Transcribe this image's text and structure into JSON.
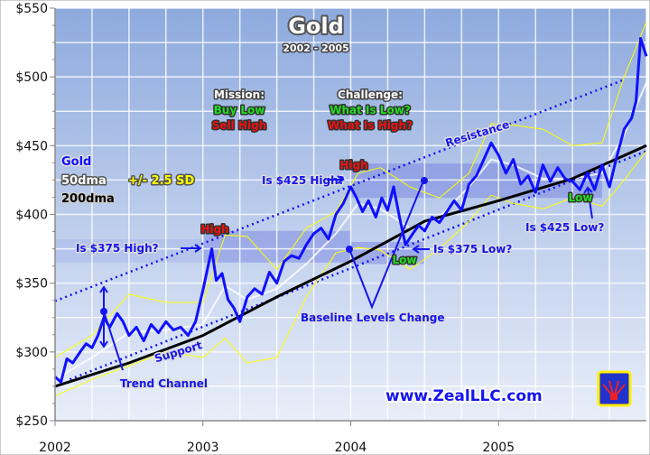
{
  "chart_data": {
    "type": "line",
    "title": "Gold",
    "subtitle": "2002 - 2005",
    "xlabel": "",
    "ylabel": "",
    "xlim": [
      2002,
      2006
    ],
    "ylim": [
      250,
      550
    ],
    "grid": true,
    "y_ticks": [
      "$550",
      "$500",
      "$450",
      "$400",
      "$350",
      "$300",
      "$250"
    ],
    "y_tick_values": [
      550,
      500,
      450,
      400,
      350,
      300,
      250
    ],
    "x_ticks": [
      "2002",
      "2003",
      "2004",
      "2005"
    ],
    "x_tick_values": [
      2002,
      2003,
      2004,
      2005
    ],
    "legend": {
      "placement": "left",
      "entries": [
        {
          "label": "Gold",
          "color": "#1010ff"
        },
        {
          "label": "50dma",
          "color": "#ffffff"
        },
        {
          "label": "+/- 2.5 SD",
          "color": "#ffff00"
        },
        {
          "label": "200dma",
          "color": "#000000"
        }
      ]
    },
    "series": [
      {
        "name": "Gold",
        "color": "#1010ff",
        "x": [
          2002,
          2002.04,
          2002.08,
          2002.12,
          2002.17,
          2002.21,
          2002.25,
          2002.29,
          2002.33,
          2002.37,
          2002.42,
          2002.46,
          2002.5,
          2002.55,
          2002.6,
          2002.65,
          2002.7,
          2002.75,
          2002.8,
          2002.85,
          2002.9,
          2002.95,
          2003,
          2003.03,
          2003.06,
          2003.09,
          2003.13,
          2003.17,
          2003.21,
          2003.25,
          2003.3,
          2003.35,
          2003.4,
          2003.45,
          2003.5,
          2003.55,
          2003.6,
          2003.65,
          2003.7,
          2003.75,
          2003.8,
          2003.85,
          2003.9,
          2003.95,
          2004,
          2004.04,
          2004.08,
          2004.12,
          2004.17,
          2004.21,
          2004.25,
          2004.29,
          2004.33,
          2004.37,
          2004.42,
          2004.46,
          2004.5,
          2004.55,
          2004.6,
          2004.65,
          2004.7,
          2004.75,
          2004.8,
          2004.85,
          2004.9,
          2004.95,
          2005,
          2005.05,
          2005.1,
          2005.15,
          2005.2,
          2005.25,
          2005.3,
          2005.35,
          2005.4,
          2005.45,
          2005.5,
          2005.55,
          2005.6,
          2005.65,
          2005.7,
          2005.75,
          2005.8,
          2005.85,
          2005.9,
          2005.93,
          2005.96,
          2006
        ],
        "y": [
          282,
          278,
          295,
          292,
          300,
          306,
          303,
          312,
          325,
          318,
          328,
          322,
          312,
          318,
          308,
          320,
          314,
          322,
          316,
          318,
          312,
          322,
          345,
          360,
          375,
          352,
          357,
          338,
          332,
          322,
          340,
          346,
          342,
          358,
          350,
          366,
          370,
          368,
          378,
          386,
          390,
          382,
          400,
          408,
          420,
          412,
          402,
          410,
          398,
          412,
          403,
          420,
          398,
          378,
          386,
          392,
          388,
          398,
          394,
          402,
          410,
          403,
          422,
          428,
          440,
          452,
          443,
          430,
          440,
          422,
          428,
          416,
          436,
          424,
          434,
          426,
          424,
          418,
          430,
          418,
          436,
          420,
          442,
          462,
          470,
          482,
          528,
          515
        ]
      },
      {
        "name": "50dma",
        "color": "#ffffff",
        "x": [
          2002,
          2002.25,
          2002.5,
          2002.75,
          2003,
          2003.15,
          2003.3,
          2003.5,
          2003.7,
          2003.9,
          2004.05,
          2004.2,
          2004.4,
          2004.6,
          2004.8,
          2004.95,
          2005.1,
          2005.3,
          2005.5,
          2005.7,
          2005.85,
          2006
        ],
        "y": [
          280,
          296,
          314,
          316,
          320,
          348,
          338,
          346,
          364,
          386,
          408,
          404,
          390,
          398,
          420,
          440,
          436,
          426,
          426,
          430,
          458,
          496
        ]
      },
      {
        "name": "Upper band (+2.5 SD)",
        "color": "#ffff00",
        "x": [
          2002,
          2002.25,
          2002.5,
          2002.75,
          2003,
          2003.15,
          2003.3,
          2003.5,
          2003.7,
          2003.9,
          2004.05,
          2004.2,
          2004.4,
          2004.6,
          2004.8,
          2004.95,
          2005.1,
          2005.3,
          2005.5,
          2005.7,
          2005.85,
          2006
        ],
        "y": [
          296,
          312,
          342,
          336,
          336,
          385,
          384,
          360,
          390,
          402,
          430,
          434,
          420,
          412,
          430,
          466,
          465,
          462,
          450,
          452,
          500,
          540
        ]
      },
      {
        "name": "Lower band (-2.5 SD)",
        "color": "#ffff00",
        "x": [
          2002,
          2002.25,
          2002.5,
          2002.75,
          2003,
          2003.15,
          2003.3,
          2003.5,
          2003.7,
          2003.9,
          2004.05,
          2004.2,
          2004.4,
          2004.6,
          2004.8,
          2004.95,
          2005.1,
          2005.3,
          2005.5,
          2005.7,
          2005.85,
          2006
        ],
        "y": [
          268,
          280,
          290,
          300,
          296,
          310,
          292,
          296,
          340,
          372,
          376,
          374,
          360,
          375,
          395,
          414,
          408,
          404,
          412,
          406,
          425,
          446
        ]
      },
      {
        "name": "200dma",
        "color": "#000000",
        "x": [
          2002,
          2002.5,
          2003,
          2003.5,
          2004,
          2004.5,
          2005,
          2005.5,
          2006
        ],
        "y": [
          275,
          292,
          312,
          340,
          366,
          395,
          410,
          426,
          450
        ]
      }
    ],
    "trend_lines": [
      {
        "name": "Resistance",
        "x": [
          2002,
          2005.85
        ],
        "y": [
          337,
          498
        ]
      },
      {
        "name": "Support",
        "x": [
          2002.1,
          2006
        ],
        "y": [
          280,
          446
        ]
      }
    ],
    "zones": [
      {
        "x": [
          2002,
          2003
        ],
        "y": [
          365,
          382
        ],
        "shade": "light"
      },
      {
        "x": [
          2003,
          2004
        ],
        "y": [
          365,
          388
        ],
        "shade": "dark"
      },
      {
        "x": [
          2004,
          2004.5
        ],
        "y": [
          364,
          380
        ],
        "shade": "dark"
      },
      {
        "x": [
          2004,
          2005.7
        ],
        "y": [
          412,
          437
        ],
        "shade": "dark"
      }
    ],
    "annotations": {
      "mission_title": "Mission:",
      "mission_buy": "Buy Low",
      "mission_sell": "Sell High",
      "challenge_title": "Challenge:",
      "challenge_low": "What Is Low?",
      "challenge_high": "What Is High?",
      "resistance": "Resistance",
      "support": "Support",
      "trend_channel": "Trend Channel",
      "baseline": "Baseline Levels Change",
      "high_1": "High",
      "high_2": "High",
      "low_1": "Low",
      "low_2": "Low",
      "q375_high": "Is $375 High?",
      "q425_high": "Is $425 High?",
      "q375_low": "Is $375 Low?",
      "q425_low": "Is $425 Low?",
      "website": "www.ZealLLC.com"
    }
  },
  "colors": {
    "bg_top": "#8eaade",
    "bg_bottom": "#e4ecf8",
    "gold": "#1010ff",
    "band": "#ffff00",
    "ma200": "#000000",
    "ma50": "#ffffff"
  }
}
